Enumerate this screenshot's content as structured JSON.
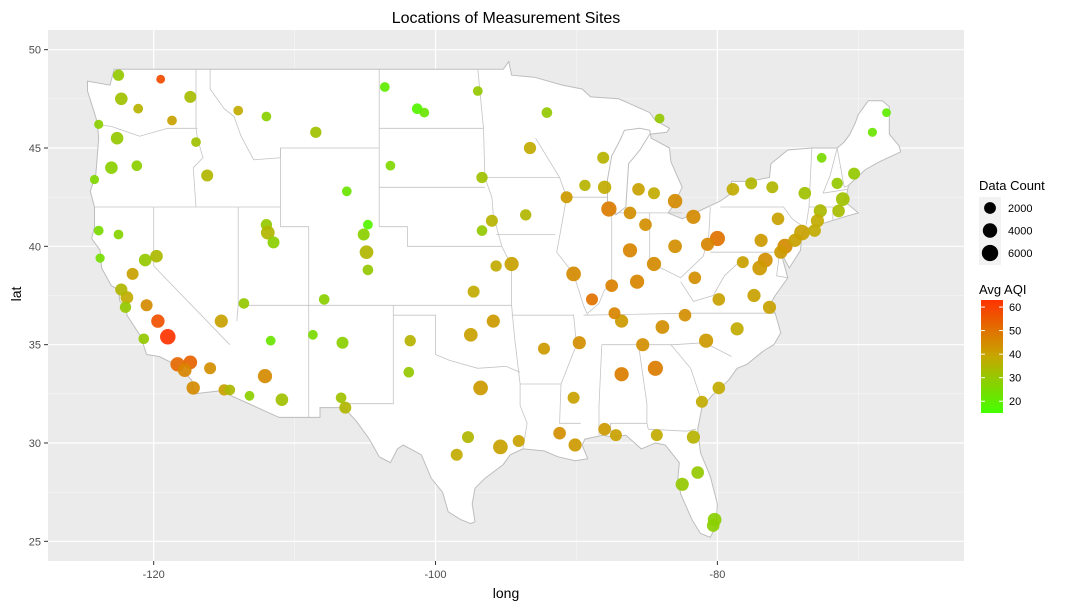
{
  "chart_data": {
    "type": "scatter",
    "title": "Locations of Measurement Sites",
    "xlabel": "long",
    "ylabel": "lat",
    "xlim": [
      -127.5,
      -62.5
    ],
    "ylim": [
      24.0,
      51.0
    ],
    "x_ticks": [
      -120,
      -100,
      -80
    ],
    "x_tick_labels": [
      "-120",
      "-100",
      "-80"
    ],
    "y_ticks": [
      25,
      30,
      35,
      40,
      45,
      50
    ],
    "y_tick_labels": [
      "25",
      "30",
      "35",
      "40",
      "45",
      "50"
    ],
    "grid": true,
    "background": "#ebebeb",
    "map": "contiguous United States state outlines, white fill, light grey borders",
    "legend_position": "right",
    "size_legend": {
      "title": "Data Count",
      "values": [
        2000,
        4000,
        6000
      ],
      "labels": [
        "2000",
        "4000",
        "6000"
      ]
    },
    "color_legend": {
      "title": "Avg AQI",
      "low": 15,
      "high": 63,
      "low_color": "#44ff00",
      "high_color": "#ff3300",
      "breaks": [
        20,
        30,
        40,
        50,
        60
      ],
      "labels": [
        "20",
        "30",
        "40",
        "50",
        "60"
      ]
    },
    "point_columns": [
      "long",
      "lat",
      "avg_aqi",
      "data_count"
    ],
    "points": [
      [
        -119.0,
        35.4,
        63,
        6400
      ],
      [
        -119.7,
        36.2,
        57,
        4200
      ],
      [
        -118.3,
        34.0,
        52,
        5200
      ],
      [
        -117.4,
        34.1,
        53,
        4500
      ],
      [
        -117.2,
        32.8,
        45,
        4200
      ],
      [
        -121.9,
        37.4,
        38,
        3600
      ],
      [
        -122.3,
        37.8,
        35,
        3200
      ],
      [
        -121.5,
        38.6,
        40,
        3000
      ],
      [
        -120.5,
        37.0,
        45,
        3000
      ],
      [
        -120.6,
        39.3,
        30,
        3500
      ],
      [
        -122.5,
        40.6,
        27,
        1500
      ],
      [
        -123.9,
        40.8,
        25,
        1500
      ],
      [
        -122.6,
        45.5,
        30,
        3500
      ],
      [
        -122.3,
        47.5,
        32,
        3500
      ],
      [
        -122.5,
        48.7,
        30,
        2500
      ],
      [
        -123.0,
        44.0,
        28,
        3500
      ],
      [
        -121.2,
        44.1,
        28,
        2000
      ],
      [
        -121.1,
        47.0,
        36,
        1500
      ],
      [
        -117.4,
        47.6,
        33,
        3000
      ],
      [
        -118.7,
        46.4,
        40,
        1500
      ],
      [
        -119.5,
        48.5,
        58,
        1000
      ],
      [
        -116.2,
        43.6,
        35,
        3000
      ],
      [
        -112.0,
        41.1,
        30,
        2500
      ],
      [
        -111.9,
        40.7,
        35,
        4500
      ],
      [
        -111.5,
        40.2,
        28,
        3000
      ],
      [
        -112.1,
        33.4,
        45,
        5000
      ],
      [
        -110.9,
        32.2,
        32,
        3500
      ],
      [
        -111.7,
        35.2,
        22,
        1500
      ],
      [
        -106.6,
        35.1,
        28,
        3000
      ],
      [
        -106.4,
        31.8,
        35,
        3000
      ],
      [
        -104.9,
        39.7,
        35,
        4500
      ],
      [
        -105.1,
        40.6,
        28,
        3000
      ],
      [
        -104.8,
        38.8,
        30,
        2000
      ],
      [
        -104.8,
        41.1,
        18,
        1500
      ],
      [
        -106.3,
        42.8,
        22,
        1500
      ],
      [
        -108.5,
        45.8,
        32,
        2500
      ],
      [
        -112.0,
        46.6,
        28,
        1500
      ],
      [
        -114.0,
        46.9,
        38,
        1500
      ],
      [
        -115.2,
        36.2,
        40,
        4000
      ],
      [
        -115.0,
        32.7,
        40,
        2500
      ],
      [
        -96.8,
        32.8,
        42,
        5500
      ],
      [
        -95.4,
        29.8,
        40,
        5500
      ],
      [
        -97.7,
        30.3,
        35,
        3000
      ],
      [
        -98.5,
        29.4,
        38,
        3000
      ],
      [
        -94.1,
        30.1,
        40,
        3000
      ],
      [
        -97.5,
        35.5,
        40,
        4500
      ],
      [
        -95.9,
        36.2,
        42,
        4000
      ],
      [
        -94.6,
        39.1,
        40,
        5000
      ],
      [
        -90.2,
        38.6,
        45,
        5500
      ],
      [
        -87.7,
        41.9,
        48,
        6200
      ],
      [
        -88.0,
        43.0,
        38,
        4200
      ],
      [
        -93.3,
        45.0,
        38,
        3200
      ],
      [
        -96.7,
        40.8,
        30,
        2000
      ],
      [
        -96.0,
        41.3,
        36,
        3000
      ],
      [
        -93.6,
        41.6,
        35,
        2500
      ],
      [
        -92.3,
        34.8,
        42,
        3000
      ],
      [
        -90.1,
        29.9,
        42,
        4000
      ],
      [
        -91.2,
        30.5,
        44,
        3500
      ],
      [
        -90.2,
        32.3,
        40,
        3000
      ],
      [
        -86.8,
        33.5,
        48,
        5000
      ],
      [
        -84.4,
        33.8,
        48,
        6000
      ],
      [
        -86.8,
        36.2,
        42,
        4000
      ],
      [
        -85.7,
        38.2,
        46,
        5000
      ],
      [
        -84.5,
        39.1,
        45,
        5000
      ],
      [
        -86.2,
        39.8,
        46,
        5000
      ],
      [
        -83.0,
        40.0,
        44,
        4500
      ],
      [
        -81.7,
        41.5,
        45,
        5000
      ],
      [
        -80.0,
        40.4,
        50,
        6000
      ],
      [
        -83.0,
        42.3,
        45,
        5200
      ],
      [
        -85.6,
        42.9,
        40,
        3500
      ],
      [
        -84.5,
        42.7,
        38,
        3000
      ],
      [
        -78.9,
        42.9,
        38,
        3500
      ],
      [
        -76.1,
        43.0,
        35,
        3000
      ],
      [
        -77.6,
        43.2,
        35,
        3000
      ],
      [
        -73.8,
        42.7,
        32,
        3500
      ],
      [
        -74.0,
        40.7,
        40,
        6500
      ],
      [
        -75.2,
        40.0,
        45,
        6000
      ],
      [
        -76.6,
        39.3,
        44,
        5500
      ],
      [
        -77.0,
        38.9,
        42,
        5500
      ],
      [
        -77.4,
        37.5,
        40,
        4000
      ],
      [
        -76.3,
        36.9,
        40,
        4000
      ],
      [
        -78.6,
        35.8,
        38,
        4000
      ],
      [
        -80.8,
        35.2,
        42,
        5000
      ],
      [
        -79.9,
        32.8,
        38,
        3500
      ],
      [
        -81.1,
        32.1,
        38,
        3000
      ],
      [
        -81.7,
        30.3,
        36,
        4000
      ],
      [
        -82.5,
        27.9,
        30,
        4000
      ],
      [
        -81.4,
        28.5,
        30,
        3500
      ],
      [
        -80.2,
        26.1,
        28,
        4500
      ],
      [
        -80.3,
        25.8,
        28,
        3500
      ],
      [
        -84.3,
        30.4,
        38,
        3000
      ],
      [
        -87.2,
        30.4,
        40,
        3000
      ],
      [
        -88.0,
        30.7,
        42,
        3500
      ],
      [
        -71.1,
        42.4,
        32,
        4500
      ],
      [
        -72.7,
        41.8,
        34,
        4000
      ],
      [
        -71.4,
        41.8,
        33,
        3500
      ],
      [
        -70.3,
        43.7,
        30,
        3000
      ],
      [
        -71.5,
        43.2,
        30,
        2500
      ],
      [
        -72.6,
        44.5,
        25,
        1500
      ],
      [
        -69.0,
        45.8,
        22,
        1200
      ],
      [
        -68.0,
        46.8,
        20,
        1000
      ],
      [
        -86.2,
        41.7,
        44,
        3500
      ],
      [
        -85.1,
        41.1,
        44,
        3500
      ],
      [
        -87.5,
        38.0,
        47,
        3500
      ],
      [
        -88.9,
        37.3,
        50,
        3000
      ],
      [
        -87.3,
        36.6,
        46,
        3000
      ],
      [
        -89.8,
        35.1,
        44,
        4000
      ],
      [
        -90.7,
        42.5,
        42,
        3000
      ],
      [
        -89.4,
        43.1,
        36,
        2500
      ],
      [
        -88.1,
        44.5,
        36,
        3000
      ],
      [
        -84.1,
        46.5,
        30,
        1500
      ],
      [
        -92.1,
        46.8,
        30,
        2000
      ],
      [
        -101.3,
        47.0,
        18,
        2000
      ],
      [
        -103.6,
        48.1,
        20,
        1500
      ],
      [
        -100.8,
        46.8,
        22,
        1500
      ],
      [
        -97.0,
        47.9,
        30,
        1500
      ],
      [
        -96.7,
        43.5,
        32,
        2500
      ],
      [
        -103.2,
        44.1,
        26,
        1500
      ],
      [
        -97.3,
        37.7,
        38,
        3000
      ],
      [
        -95.7,
        39.0,
        38,
        2500
      ],
      [
        -101.8,
        35.2,
        36,
        2500
      ],
      [
        -101.9,
        33.6,
        30,
        2000
      ],
      [
        -106.7,
        32.3,
        32,
        2000
      ],
      [
        -108.7,
        35.5,
        25,
        1500
      ],
      [
        -107.9,
        37.3,
        28,
        2000
      ],
      [
        -113.6,
        37.1,
        30,
        2000
      ],
      [
        -113.2,
        32.4,
        28,
        1500
      ],
      [
        -114.6,
        32.7,
        34,
        2000
      ],
      [
        -116.0,
        33.8,
        44,
        3000
      ],
      [
        -119.8,
        39.5,
        34,
        3500
      ],
      [
        -117.8,
        33.7,
        46,
        4500
      ],
      [
        -122.0,
        36.9,
        30,
        2500
      ],
      [
        -120.7,
        35.3,
        30,
        2000
      ],
      [
        -123.8,
        39.4,
        24,
        1200
      ],
      [
        -124.2,
        43.4,
        26,
        1200
      ],
      [
        -123.9,
        46.2,
        28,
        1200
      ],
      [
        -117.0,
        45.3,
        32,
        1500
      ],
      [
        -82.3,
        36.5,
        44,
        3500
      ],
      [
        -83.9,
        35.9,
        44,
        4500
      ],
      [
        -85.3,
        35.0,
        44,
        4000
      ],
      [
        -81.6,
        38.4,
        44,
        3500
      ],
      [
        -80.7,
        40.1,
        46,
        4000
      ],
      [
        -79.9,
        37.3,
        40,
        3500
      ],
      [
        -78.2,
        39.2,
        40,
        3000
      ],
      [
        -76.9,
        40.3,
        42,
        4000
      ],
      [
        -75.7,
        41.4,
        40,
        3500
      ],
      [
        -75.5,
        39.7,
        42,
        4000
      ],
      [
        -74.5,
        40.3,
        40,
        4000
      ],
      [
        -73.1,
        40.8,
        38,
        3500
      ],
      [
        -72.9,
        41.3,
        38,
        4000
      ]
    ]
  }
}
